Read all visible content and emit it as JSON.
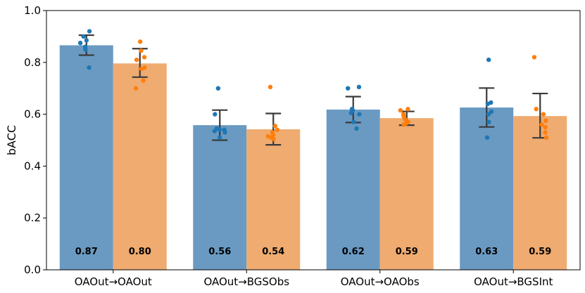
{
  "chart_data": {
    "type": "bar",
    "title": "",
    "xlabel": "",
    "ylabel": "bACC",
    "ylim": [
      0,
      1.0
    ],
    "yticks": [
      "0.0",
      "0.2",
      "0.4",
      "0.6",
      "0.8",
      "1.0"
    ],
    "categories": [
      "OAOut→OAOut",
      "OAOut→BGSObs",
      "OAOut→OAObs",
      "OAOut→BGSInt"
    ],
    "grid": false,
    "legend": "none",
    "series": [
      {
        "color": "#6a9ac2",
        "point_color": "#1f77b4",
        "values": [
          0.866,
          0.558,
          0.618,
          0.626
        ],
        "error": [
          [
            0.828,
            0.905
          ],
          [
            0.5,
            0.616
          ],
          [
            0.568,
            0.668
          ],
          [
            0.551,
            0.701
          ]
        ],
        "labels": [
          "0.87",
          "0.56",
          "0.62",
          "0.63"
        ],
        "points": [
          [
            0.92,
            0.9,
            0.885,
            0.875,
            0.86,
            0.85,
            0.78
          ],
          [
            0.7,
            0.6,
            0.545,
            0.54,
            0.54,
            0.535,
            0.53,
            0.51
          ],
          [
            0.705,
            0.7,
            0.62,
            0.615,
            0.605,
            0.6,
            0.57,
            0.545
          ],
          [
            0.81,
            0.645,
            0.64,
            0.61,
            0.6,
            0.57,
            0.51
          ]
        ]
      },
      {
        "color": "#efab70",
        "point_color": "#ff7f0e",
        "values": [
          0.796,
          0.542,
          0.585,
          0.593
        ],
        "error": [
          [
            0.743,
            0.853
          ],
          [
            0.482,
            0.603
          ],
          [
            0.558,
            0.611
          ],
          [
            0.509,
            0.68
          ]
        ],
        "labels": [
          "0.80",
          "0.54",
          "0.59",
          "0.59"
        ],
        "points": [
          [
            0.88,
            0.845,
            0.82,
            0.81,
            0.78,
            0.775,
            0.73,
            0.7
          ],
          [
            0.705,
            0.555,
            0.54,
            0.53,
            0.52,
            0.515,
            0.51,
            0.505
          ],
          [
            0.62,
            0.615,
            0.6,
            0.59,
            0.58,
            0.57,
            0.565,
            0.56
          ],
          [
            0.82,
            0.62,
            0.6,
            0.575,
            0.56,
            0.55,
            0.53,
            0.51
          ]
        ]
      }
    ]
  }
}
